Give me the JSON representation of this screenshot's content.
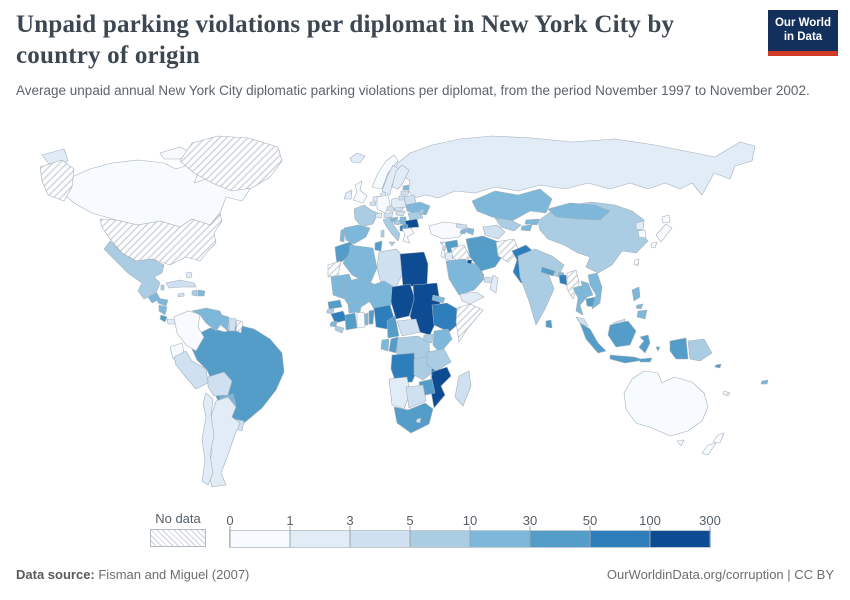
{
  "header": {
    "title": "Unpaid parking violations per diplomat in New York City by country of origin",
    "subtitle": "Average unpaid annual New York City diplomatic parking violations per diplomat, from the period November 1997 to November 2002."
  },
  "logo": {
    "line1": "Our World",
    "line2": "in Data",
    "background": "#12305b",
    "bar_color": "#d13a27"
  },
  "legend": {
    "no_data_label": "No data",
    "ticks": [
      "0",
      "1",
      "3",
      "5",
      "10",
      "30",
      "50",
      "100",
      "300"
    ]
  },
  "footer": {
    "source_label": "Data source:",
    "source_value": " Fisman and Miguel (2007)",
    "right_text": "OurWorldinData.org/corruption | CC BY"
  },
  "chart_data": {
    "type": "choropleth_map",
    "title": "Unpaid parking violations per diplomat in New York City by country of origin",
    "unit": "average unpaid annual parking violations per diplomat",
    "period": "November 1997 to November 2002",
    "bins": [
      {
        "label": "0-1",
        "color": "#f7fbff"
      },
      {
        "label": "1-3",
        "color": "#e1ecf7"
      },
      {
        "label": "3-5",
        "color": "#cfe0f0"
      },
      {
        "label": "5-10",
        "color": "#aacde4"
      },
      {
        "label": "10-30",
        "color": "#7db8da"
      },
      {
        "label": "30-50",
        "color": "#539dc8"
      },
      {
        "label": "50-100",
        "color": "#2e7ebc"
      },
      {
        "label": "100-300",
        "color": "#0d4b92"
      }
    ],
    "no_data_key": "no_data",
    "countries": {
      "United States": "no_data",
      "Greenland": "no_data",
      "French Guiana": "no_data",
      "Western Sahara": "no_data",
      "Iraq": "no_data",
      "Afghanistan": "no_data",
      "Myanmar": "no_data",
      "Somalia": "no_data",
      "Taiwan": "no_data",
      "New Caledonia": "no_data",
      "Canada": "0-1",
      "Colombia": "0-1",
      "Ecuador": "0-1",
      "Norway": "0-1",
      "United Kingdom": "0-1",
      "Germany": "0-1",
      "Greece": "0-1",
      "Turkey": "0-1",
      "Israel": "0-1",
      "Japan": "0-1",
      "South Korea": "0-1",
      "Australia": "0-1",
      "New Zealand": "0-1",
      "Ghana": "0-1",
      "Russia": "1-3",
      "Iceland": "1-3",
      "Sweden": "1-3",
      "Finland": "1-3",
      "Denmark": "1-3",
      "Ireland": "1-3",
      "Netherlands": "1-3",
      "Switzerland": "1-3",
      "Poland": "1-3",
      "Panama": "1-3",
      "Bahamas": "1-3",
      "Argentina": "1-3",
      "Chile": "1-3",
      "Jordan": "1-3",
      "Yemen": "1-3",
      "Oman": "1-3",
      "Namibia": "1-3",
      "North Korea": "1-3",
      "Belgium": "3-5",
      "Austria": "3-5",
      "Czechia": "3-5",
      "Latvia": "3-5",
      "Lithuania": "3-5",
      "Belarus": "3-5",
      "Hungary": "3-5",
      "Slovakia": "3-5",
      "Cuba": "3-5",
      "Jamaica": "3-5",
      "Suriname": "3-5",
      "Peru": "3-5",
      "Bolivia": "3-5",
      "Uruguay": "3-5",
      "Libya": "3-5",
      "Central African Republic": "3-5",
      "Botswana": "3-5",
      "Lesotho": "3-5",
      "Madagascar": "3-5",
      "Malaysia": "3-5",
      "United Arab Emirates": "3-5",
      "Lebanon": "3-5",
      "Turkmenistan": "3-5",
      "Georgia": "3-5",
      "Cyprus": "3-5",
      "Mexico": "5-10",
      "France": "5-10",
      "Italy": "5-10",
      "Moldova": "5-10",
      "Romania": "5-10",
      "Bosnia": "5-10",
      "Haiti": "5-10",
      "Belize": "5-10",
      "Guinea-Bissau": "5-10",
      "Liberia": "5-10",
      "Uganda": "5-10",
      "Rwanda": "5-10",
      "DR Congo": "5-10",
      "Zambia": "5-10",
      "Tanzania": "5-10",
      "Uzbekistan": "5-10",
      "China": "5-10",
      "India": "5-10",
      "Papua New Guinea": "5-10",
      "Spain": "10-30",
      "Portugal": "10-30",
      "Estonia": "10-30",
      "Ukraine": "10-30",
      "Croatia": "10-30",
      "Serbia": "10-30",
      "Guatemala": "10-30",
      "Honduras": "10-30",
      "Nicaragua": "10-30",
      "Dominican Republic": "10-30",
      "Venezuela": "10-30",
      "Guyana": "10-30",
      "Paraguay": "10-30",
      "Algeria": "10-30",
      "Mauritania": "10-30",
      "Mali": "10-30",
      "Niger": "10-30",
      "Burkina Faso": "10-30",
      "Togo": "10-30",
      "Sierra Leone": "10-30",
      "Eritrea": "10-30",
      "Djibouti": "10-30",
      "Kenya": "10-30",
      "Gabon": "10-30",
      "Saudi Arabia": "10-30",
      "Qatar": "10-30",
      "Kazakhstan": "10-30",
      "Kyrgyzstan": "10-30",
      "Tajikistan": "10-30",
      "Armenia": "10-30",
      "Azerbaijan": "10-30",
      "Mongolia": "10-30",
      "Thailand": "10-30",
      "Laos": "10-30",
      "Vietnam": "10-30",
      "Philippines": "10-30",
      "Fiji": "10-30",
      "Bhutan": "10-30",
      "Morocco": "30-50",
      "Tunisia": "30-50",
      "Costa Rica": "30-50",
      "Trinidad and Tobago": "30-50",
      "Brazil": "30-50",
      "Senegal": "30-50",
      "Ivory Coast": "30-50",
      "Benin": "30-50",
      "Cameroon": "30-50",
      "Congo": "30-50",
      "Zimbabwe": "30-50",
      "South Africa": "30-50",
      "Syria": "30-50",
      "Iran": "30-50",
      "North Macedonia": "30-50",
      "Sri Lanka": "30-50",
      "Nepal": "30-50",
      "Cambodia": "30-50",
      "Indonesia": "30-50",
      "Solomon Islands": "30-50",
      "Albania": "50-100",
      "Guinea": "50-100",
      "Nigeria": "50-100",
      "Ethiopia": "50-100",
      "Angola": "50-100",
      "Malawi": "50-100",
      "Pakistan": "50-100",
      "Bangladesh": "50-100",
      "Bulgaria": "100-300",
      "Egypt": "100-300",
      "Chad": "100-300",
      "Sudan": "100-300",
      "Mozambique": "100-300",
      "Kuwait": "100-300"
    }
  }
}
